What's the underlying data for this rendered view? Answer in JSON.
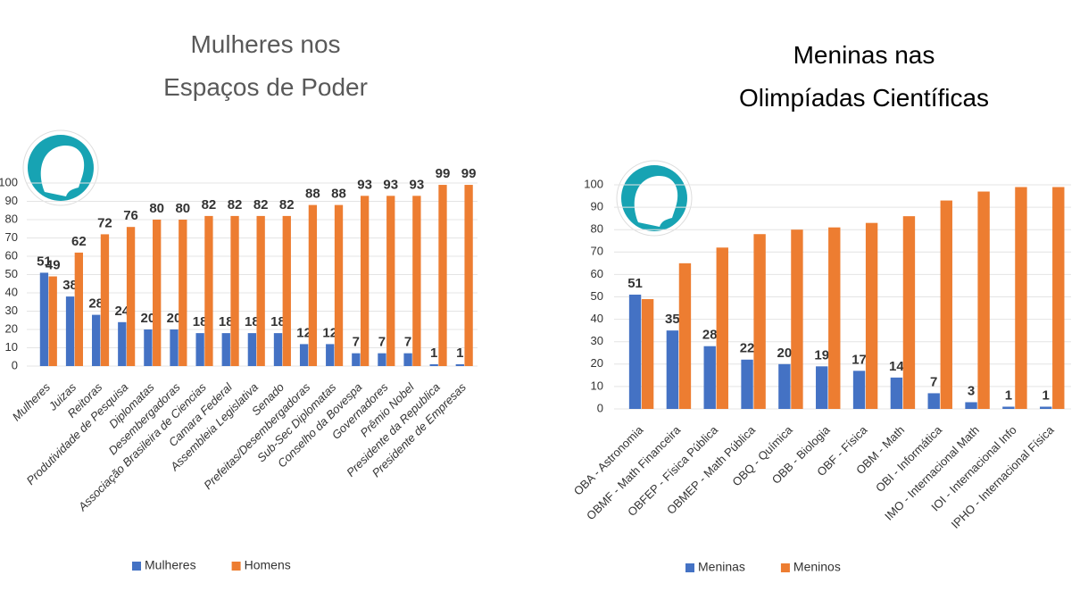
{
  "chart_data": [
    {
      "type": "bar",
      "title": "Mulheres nos Espaços de Poder",
      "categories": [
        "Mulheres",
        "Juizas",
        "Reitoras",
        "Produtividade de Pesquisa",
        "Diplomatas",
        "Desembergadoras",
        "Associação Brasileira de Ciencias",
        "Camara Federal",
        "Assembleia Legislativa",
        "Senado",
        "Prefeitas/Desembergadoras",
        "Sub-Sec Diplomatas",
        "Conselho da Bovespa",
        "Governadores",
        "Prêmio Nobel",
        "Presidente da Republica",
        "Presidente de Empresas"
      ],
      "series": [
        {
          "name": "Mulheres",
          "color": "#4472c4",
          "values": [
            51,
            38,
            28,
            24,
            20,
            20,
            18,
            18,
            18,
            18,
            12,
            12,
            7,
            7,
            7,
            1,
            1
          ],
          "label_colors": [
            "#1f3864",
            "#1f3864",
            "#1f3864",
            "#1f3864",
            "#1f3864",
            "#1f3864",
            "#1f3864",
            "#1f3864",
            "#1f3864",
            "#1f3864",
            "#1f3864",
            "#1f3864",
            "#1f3864",
            "#1f3864",
            "#1f3864",
            "#c00000",
            "#c00000"
          ]
        },
        {
          "name": "Homens",
          "color": "#ed7d31",
          "values": [
            49,
            62,
            72,
            76,
            80,
            80,
            82,
            82,
            82,
            82,
            88,
            88,
            93,
            93,
            93,
            99,
            99
          ],
          "label_colors": [
            "#333333",
            "#333333",
            "#333333",
            "#333333",
            "#333333",
            "#333333",
            "#333333",
            "#333333",
            "#333333",
            "#333333",
            "#333333",
            "#333333",
            "#333333",
            "#333333",
            "#333333",
            "#333333",
            "#333333"
          ]
        }
      ],
      "ylim": [
        0,
        100
      ],
      "yticks": [
        0,
        10,
        20,
        30,
        40,
        50,
        60,
        70,
        80,
        90,
        100
      ],
      "grid": true,
      "legend": "bottom"
    },
    {
      "type": "bar",
      "title": "Meninas nas Olimpíadas Científicas",
      "categories": [
        "OBA - Astronomia",
        "OBMF - Math Financeira",
        "OBFEP - Física Pública",
        "OBMEP - Math Pública",
        "OBQ - Química",
        "OBB - Biologia",
        "OBF - Física",
        "OBM - Math",
        "OBI - Informática",
        "IMO - Internacional Math",
        "IOI - Internacional Info",
        "IPHO - Internacional Física"
      ],
      "series": [
        {
          "name": "Meninas",
          "color": "#4472c4",
          "values": [
            51,
            35,
            28,
            22,
            20,
            19,
            17,
            14,
            7,
            3,
            1,
            1
          ],
          "label_colors": [
            "#333333",
            "#333333",
            "#333333",
            "#333333",
            "#333333",
            "#333333",
            "#333333",
            "#333333",
            "#333333",
            "#333333",
            "#c00000",
            "#c00000"
          ]
        },
        {
          "name": "Meninos",
          "color": "#ed7d31",
          "values": [
            49,
            65,
            72,
            78,
            80,
            81,
            83,
            86,
            93,
            97,
            99,
            99
          ]
        }
      ],
      "ylim": [
        0,
        100
      ],
      "yticks": [
        0,
        10,
        20,
        30,
        40,
        50,
        60,
        70,
        80,
        90,
        100
      ],
      "grid": true,
      "legend": "bottom"
    }
  ]
}
